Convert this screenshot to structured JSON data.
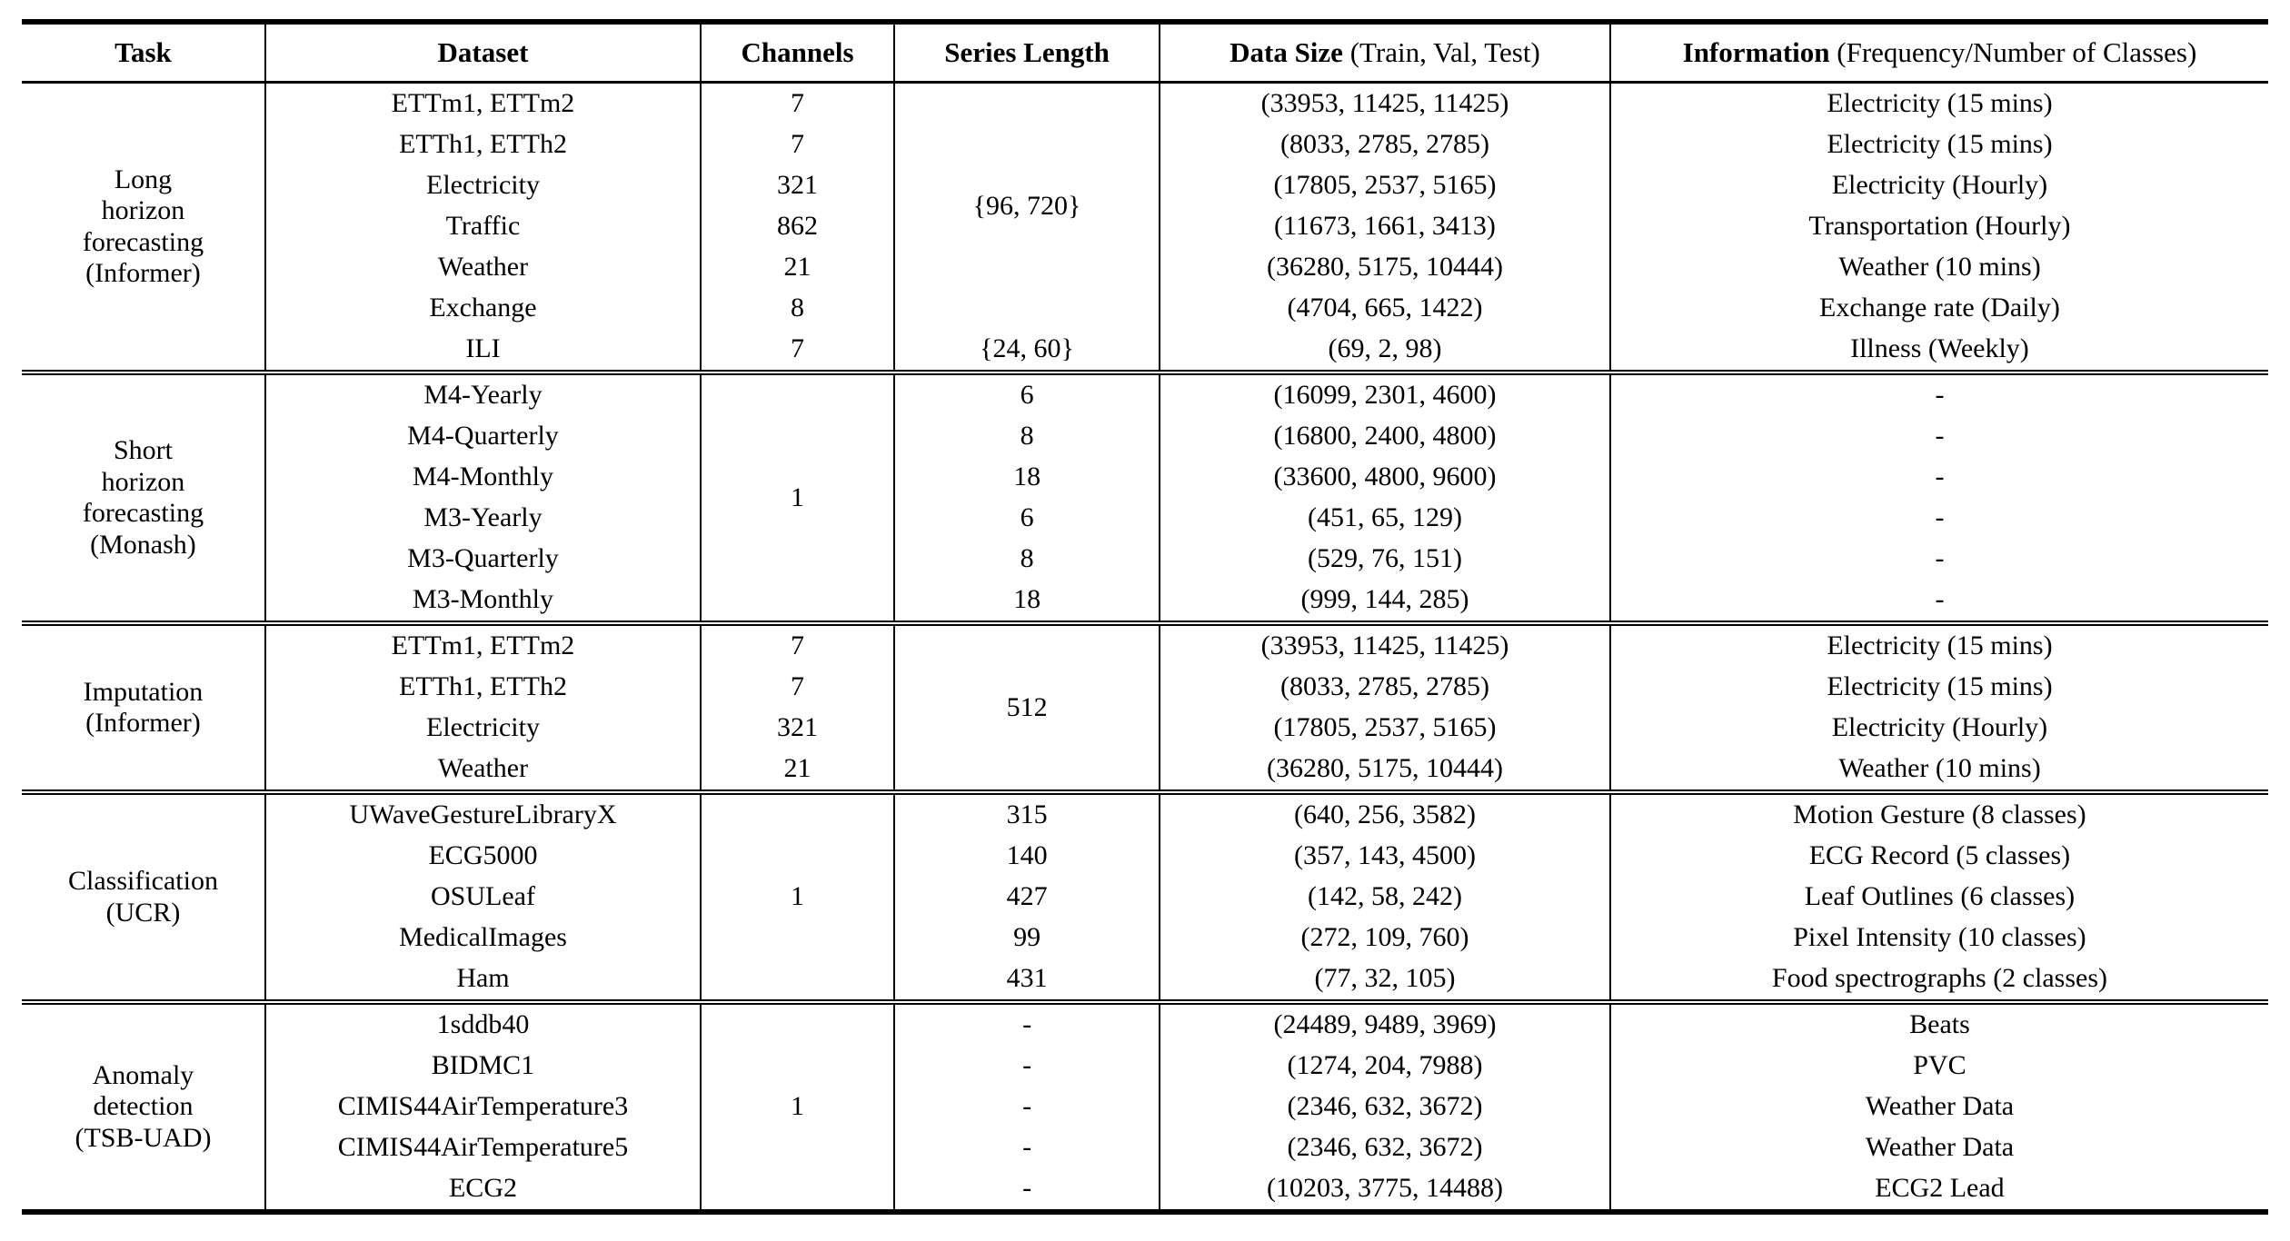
{
  "table": {
    "column_keys": [
      "dataset",
      "channels",
      "series-length",
      "data-size",
      "information"
    ],
    "headers": [
      {
        "bold": "Task",
        "normal": ""
      },
      {
        "bold": "Dataset",
        "normal": ""
      },
      {
        "bold": "Channels",
        "normal": ""
      },
      {
        "bold": "Series Length",
        "normal": ""
      },
      {
        "bold": "Data Size",
        "normal": " (Train, Val, Test)"
      },
      {
        "bold": "Information",
        "normal": " (Frequency/Number of Classes)"
      }
    ],
    "sections": [
      {
        "task": "Long\nhorizon\nforecasting\n(Informer)",
        "rows": [
          [
            "ETTm1, ETTm2",
            "7",
            {
              "v": "{96, 720}",
              "span": 6
            },
            "(33953, 11425, 11425)",
            "Electricity (15 mins)"
          ],
          [
            "ETTh1, ETTh2",
            "7",
            null,
            "(8033, 2785, 2785)",
            "Electricity (15 mins)"
          ],
          [
            "Electricity",
            "321",
            null,
            "(17805, 2537, 5165)",
            "Electricity (Hourly)"
          ],
          [
            "Traffic",
            "862",
            null,
            "(11673, 1661, 3413)",
            "Transportation (Hourly)"
          ],
          [
            "Weather",
            "21",
            null,
            "(36280, 5175, 10444)",
            "Weather (10 mins)"
          ],
          [
            "Exchange",
            "8",
            null,
            "(4704, 665, 1422)",
            "Exchange rate (Daily)"
          ],
          [
            "ILI",
            "7",
            "{24, 60}",
            "(69, 2, 98)",
            "Illness (Weekly)"
          ]
        ]
      },
      {
        "task": "Short\nhorizon\nforecasting\n(Monash)",
        "rows": [
          [
            "M4-Yearly",
            {
              "v": "1",
              "span": 6
            },
            "6",
            "(16099, 2301, 4600)",
            "-"
          ],
          [
            "M4-Quarterly",
            null,
            "8",
            "(16800, 2400, 4800)",
            "-"
          ],
          [
            "M4-Monthly",
            null,
            "18",
            "(33600, 4800, 9600)",
            "-"
          ],
          [
            "M3-Yearly",
            null,
            "6",
            "(451, 65, 129)",
            "-"
          ],
          [
            "M3-Quarterly",
            null,
            "8",
            "(529, 76, 151)",
            "-"
          ],
          [
            "M3-Monthly",
            null,
            "18",
            "(999, 144, 285)",
            "-"
          ]
        ]
      },
      {
        "task": "Imputation\n(Informer)",
        "rows": [
          [
            "ETTm1, ETTm2",
            "7",
            {
              "v": "512",
              "span": 4
            },
            "(33953, 11425, 11425)",
            "Electricity (15 mins)"
          ],
          [
            "ETTh1, ETTh2",
            "7",
            null,
            "(8033, 2785, 2785)",
            "Electricity (15 mins)"
          ],
          [
            "Electricity",
            "321",
            null,
            "(17805, 2537, 5165)",
            "Electricity (Hourly)"
          ],
          [
            "Weather",
            "21",
            null,
            "(36280, 5175, 10444)",
            "Weather (10 mins)"
          ]
        ]
      },
      {
        "task": "Classification\n(UCR)",
        "rows": [
          [
            "UWaveGestureLibraryX",
            {
              "v": "1",
              "span": 5
            },
            "315",
            "(640, 256, 3582)",
            "Motion Gesture (8 classes)"
          ],
          [
            "ECG5000",
            null,
            "140",
            "(357, 143, 4500)",
            "ECG Record (5 classes)"
          ],
          [
            "OSULeaf",
            null,
            "427",
            "(142, 58, 242)",
            "Leaf Outlines (6 classes)"
          ],
          [
            "MedicalImages",
            null,
            "99",
            "(272, 109, 760)",
            "Pixel Intensity (10 classes)"
          ],
          [
            "Ham",
            null,
            "431",
            "(77, 32, 105)",
            "Food spectrographs (2 classes)"
          ]
        ]
      },
      {
        "task": "Anomaly\ndetection\n(TSB-UAD)",
        "rows": [
          [
            "1sddb40",
            {
              "v": "1",
              "span": 5
            },
            "-",
            "(24489, 9489, 3969)",
            "Beats"
          ],
          [
            "BIDMC1",
            null,
            "-",
            "(1274, 204, 7988)",
            "PVC"
          ],
          [
            "CIMIS44AirTemperature3",
            null,
            "-",
            "(2346, 632, 3672)",
            "Weather Data"
          ],
          [
            "CIMIS44AirTemperature5",
            null,
            "-",
            "(2346, 632, 3672)",
            "Weather Data"
          ],
          [
            "ECG2",
            null,
            "-",
            "(10203, 3775, 14488)",
            "ECG2 Lead"
          ]
        ]
      }
    ]
  }
}
